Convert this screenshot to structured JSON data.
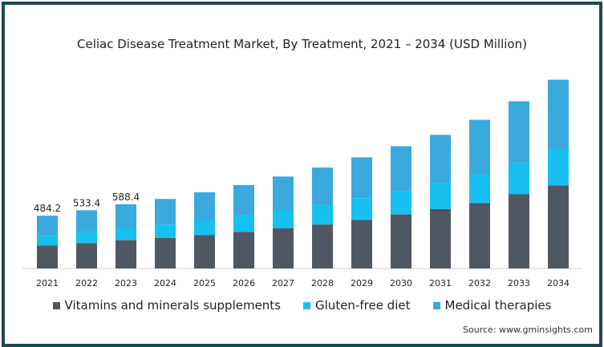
{
  "chart_data": {
    "type": "bar",
    "stacked": true,
    "title": "Celiac Disease Treatment Market, By Treatment, 2021 – 2034 (USD Million)",
    "categories": [
      "2021",
      "2022",
      "2023",
      "2024",
      "2025",
      "2026",
      "2027",
      "2028",
      "2029",
      "2030",
      "2031",
      "2032",
      "2033",
      "2034"
    ],
    "series": [
      {
        "name": "Vitamins and minerals supplements",
        "color": "#4f5763",
        "values": [
          210,
          233,
          259,
          280,
          305,
          335,
          368,
          403,
          445,
          495,
          545,
          600,
          680,
          760
        ]
      },
      {
        "name": "Gluten-free diet",
        "color": "#17c0ef",
        "values": [
          90,
          100,
          112,
          122,
          136,
          148,
          165,
          180,
          200,
          216,
          240,
          263,
          290,
          328
        ]
      },
      {
        "name": "Medical therapies",
        "color": "#3aa9dd",
        "values": [
          184.2,
          200.4,
          217.4,
          235,
          258,
          282,
          310,
          342,
          373,
          410,
          440,
          500,
          563,
          642
        ]
      }
    ],
    "data_labels": [
      "484.2",
      "533.4",
      "588.4"
    ],
    "ylim": [
      0,
      1800
    ],
    "legend": "bottom",
    "grid": false
  },
  "source": "Source: www.gminsights.com"
}
